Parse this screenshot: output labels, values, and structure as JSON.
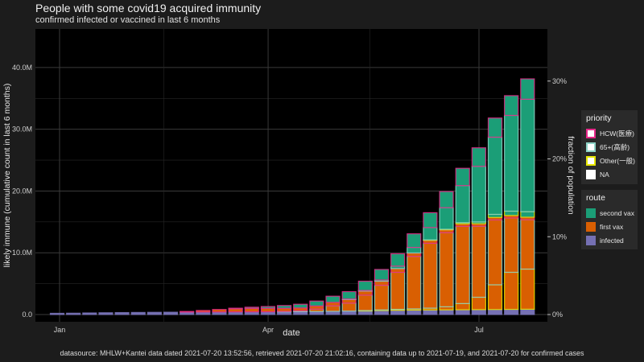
{
  "chart_data": {
    "type": "bar",
    "title": "People with some covid19 acquired immunity",
    "subtitle": "confirmed infected or vaccined in last 6 months",
    "xlabel": "date",
    "ylabel": "likely immune (cumulative count in last 6 months)",
    "y2label": "fraction of population",
    "x_ticks": [
      "Jan",
      "Apr",
      "Jul"
    ],
    "y_ticks": [
      "0.0",
      "10.0M",
      "20.0M",
      "30.0M",
      "40.0M"
    ],
    "y2_ticks": [
      "0%",
      "10%",
      "20%",
      "30%"
    ],
    "ylim": [
      0,
      46000000
    ],
    "caption": "datasource: MHLW+Kantei data dated 2021-07-20 13:52:56, retrieved 2021-07-20 21:02:16, containing data up to 2021-07-19, and 2021-07-20 for confirmed cases",
    "stack_order": [
      "infected",
      "first vax Other",
      "first vax 65+",
      "first vax HCW",
      "second vax Other",
      "second vax 65+",
      "second vax HCW"
    ],
    "series_colors": {
      "infected": "#7570b3",
      "first vax": "#d95f02",
      "second vax": "#1b9e77",
      "HCW": "#e7298a",
      "65+": "#8dd3c7",
      "Other": "#e6e600",
      "NA": "#ffffff"
    },
    "weekly": [
      {
        "date": "2020-12-28",
        "infected": 200000,
        "first_hcw": 0,
        "first_65": 0,
        "first_other": 0,
        "second_hcw": 0,
        "second_65": 0,
        "second_other": 0
      },
      {
        "date": "2021-01-04",
        "infected": 220000,
        "first_hcw": 0,
        "first_65": 0,
        "first_other": 0,
        "second_hcw": 0,
        "second_65": 0,
        "second_other": 0
      },
      {
        "date": "2021-01-11",
        "infected": 260000,
        "first_hcw": 0,
        "first_65": 0,
        "first_other": 0,
        "second_hcw": 0,
        "second_65": 0,
        "second_other": 0
      },
      {
        "date": "2021-01-18",
        "infected": 290000,
        "first_hcw": 0,
        "first_65": 0,
        "first_other": 0,
        "second_hcw": 0,
        "second_65": 0,
        "second_other": 0
      },
      {
        "date": "2021-01-25",
        "infected": 320000,
        "first_hcw": 0,
        "first_65": 0,
        "first_other": 0,
        "second_hcw": 0,
        "second_65": 0,
        "second_other": 0
      },
      {
        "date": "2021-02-01",
        "infected": 340000,
        "first_hcw": 0,
        "first_65": 0,
        "first_other": 0,
        "second_hcw": 0,
        "second_65": 0,
        "second_other": 0
      },
      {
        "date": "2021-02-08",
        "infected": 360000,
        "first_hcw": 0,
        "first_65": 0,
        "first_other": 0,
        "second_hcw": 0,
        "second_65": 0,
        "second_other": 0
      },
      {
        "date": "2021-02-15",
        "infected": 380000,
        "first_hcw": 0,
        "first_65": 0,
        "first_other": 0,
        "second_hcw": 0,
        "second_65": 0,
        "second_other": 0
      },
      {
        "date": "2021-02-22",
        "infected": 400000,
        "first_hcw": 100000,
        "first_65": 0,
        "first_other": 0,
        "second_hcw": 0,
        "second_65": 0,
        "second_other": 0
      },
      {
        "date": "2021-03-01",
        "infected": 410000,
        "first_hcw": 250000,
        "first_65": 0,
        "first_other": 0,
        "second_hcw": 0,
        "second_65": 0,
        "second_other": 0
      },
      {
        "date": "2021-03-08",
        "infected": 420000,
        "first_hcw": 400000,
        "first_65": 0,
        "first_other": 0,
        "second_hcw": 0,
        "second_65": 0,
        "second_other": 0
      },
      {
        "date": "2021-03-15",
        "infected": 430000,
        "first_hcw": 500000,
        "first_65": 0,
        "first_other": 0,
        "second_hcw": 100000,
        "second_65": 0,
        "second_other": 0
      },
      {
        "date": "2021-03-22",
        "infected": 440000,
        "first_hcw": 550000,
        "first_65": 0,
        "first_other": 0,
        "second_hcw": 200000,
        "second_65": 0,
        "second_other": 0
      },
      {
        "date": "2021-03-29",
        "infected": 450000,
        "first_hcw": 550000,
        "first_65": 0,
        "first_other": 0,
        "second_hcw": 300000,
        "second_65": 0,
        "second_other": 0
      },
      {
        "date": "2021-04-05",
        "infected": 460000,
        "first_hcw": 500000,
        "first_65": 50000,
        "first_other": 0,
        "second_hcw": 450000,
        "second_65": 0,
        "second_other": 0
      },
      {
        "date": "2021-04-12",
        "infected": 470000,
        "first_hcw": 450000,
        "first_65": 150000,
        "first_other": 0,
        "second_hcw": 600000,
        "second_65": 0,
        "second_other": 0
      },
      {
        "date": "2021-04-19",
        "infected": 490000,
        "first_hcw": 500000,
        "first_65": 400000,
        "first_other": 0,
        "second_hcw": 800000,
        "second_65": 0,
        "second_other": 0
      },
      {
        "date": "2021-04-26",
        "infected": 520000,
        "first_hcw": 550000,
        "first_65": 900000,
        "first_other": 0,
        "second_hcw": 1000000,
        "second_65": 0,
        "second_other": 0
      },
      {
        "date": "2021-05-03",
        "infected": 560000,
        "first_hcw": 600000,
        "first_65": 1300000,
        "first_other": 0,
        "second_hcw": 1200000,
        "second_65": 50000,
        "second_other": 0
      },
      {
        "date": "2021-05-10",
        "infected": 600000,
        "first_hcw": 650000,
        "first_65": 2500000,
        "first_other": 50000,
        "second_hcw": 1500000,
        "second_65": 100000,
        "second_other": 0
      },
      {
        "date": "2021-05-17",
        "infected": 650000,
        "first_hcw": 650000,
        "first_65": 4000000,
        "first_other": 100000,
        "second_hcw": 1700000,
        "second_65": 200000,
        "second_other": 0
      },
      {
        "date": "2021-05-24",
        "infected": 690000,
        "first_hcw": 600000,
        "first_65": 6000000,
        "first_other": 150000,
        "second_hcw": 2000000,
        "second_65": 400000,
        "second_other": 0
      },
      {
        "date": "2021-05-31",
        "infected": 720000,
        "first_hcw": 550000,
        "first_65": 8500000,
        "first_other": 200000,
        "second_hcw": 2200000,
        "second_65": 900000,
        "second_other": 0
      },
      {
        "date": "2021-06-07",
        "infected": 740000,
        "first_hcw": 500000,
        "first_65": 10500000,
        "first_other": 300000,
        "second_hcw": 2400000,
        "second_65": 2000000,
        "second_other": 50000
      },
      {
        "date": "2021-06-14",
        "infected": 760000,
        "first_hcw": 450000,
        "first_65": 12000000,
        "first_other": 500000,
        "second_hcw": 2600000,
        "second_65": 3500000,
        "second_other": 100000
      },
      {
        "date": "2021-06-21",
        "infected": 780000,
        "first_hcw": 400000,
        "first_65": 12500000,
        "first_other": 1000000,
        "second_hcw": 2800000,
        "second_65": 6000000,
        "second_other": 200000
      },
      {
        "date": "2021-06-28",
        "infected": 800000,
        "first_hcw": 400000,
        "first_65": 11500000,
        "first_other": 2000000,
        "second_hcw": 3000000,
        "second_65": 9000000,
        "second_other": 300000
      },
      {
        "date": "2021-07-05",
        "infected": 820000,
        "first_hcw": 400000,
        "first_65": 10500000,
        "first_other": 4000000,
        "second_hcw": 3100000,
        "second_65": 12500000,
        "second_other": 500000
      },
      {
        "date": "2021-07-12",
        "infected": 840000,
        "first_hcw": 400000,
        "first_65": 8800000,
        "first_other": 6000000,
        "second_hcw": 3200000,
        "second_65": 15500000,
        "second_other": 700000
      },
      {
        "date": "2021-07-19",
        "infected": 860000,
        "first_hcw": 400000,
        "first_65": 8000000,
        "first_other": 6500000,
        "second_hcw": 3300000,
        "second_65": 18200000,
        "second_other": 900000
      }
    ]
  },
  "legend": {
    "priority_title": "priority",
    "priority_items": [
      {
        "label": "HCW(医療)",
        "color": "#e7298a"
      },
      {
        "label": "65+(高齢)",
        "color": "#8dd3c7"
      },
      {
        "label": "Other(一般)",
        "color": "#e6e600"
      },
      {
        "label": "NA",
        "color": "#ffffff"
      }
    ],
    "route_title": "route",
    "route_items": [
      {
        "label": "second vax",
        "color": "#1b9e77"
      },
      {
        "label": "first vax",
        "color": "#d95f02"
      },
      {
        "label": "infected",
        "color": "#7570b3"
      }
    ]
  }
}
